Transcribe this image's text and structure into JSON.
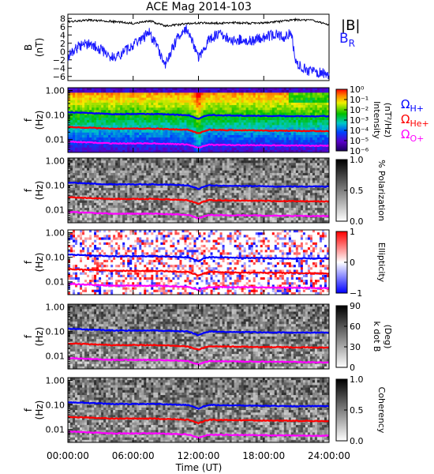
{
  "title": "ACE Mag 2014-103",
  "xlabel": "Time (UT)",
  "x_ticks": [
    "00:00:00",
    "06:00:00",
    "12:00:00",
    "18:00:00",
    "24:00:00"
  ],
  "colors": {
    "b_total": "#000000",
    "b_r": "#1a1aff",
    "h_plus": "#0000ff",
    "he_plus": "#ff0000",
    "o_plus": "#ff00ff"
  },
  "panel_b": {
    "ylabel": "B",
    "yunit": "(nT)",
    "ticks": [
      "8",
      "6",
      "4",
      "2",
      "0",
      "−2",
      "−4",
      "−6"
    ],
    "legend_b": "|B|",
    "legend_br": "B",
    "legend_br_sub": "R"
  },
  "spectral": {
    "ylabel": "f",
    "yunit": "(Hz)",
    "ticks": [
      "1.00",
      "0.10",
      "0.01"
    ]
  },
  "panels": [
    {
      "label": "Intensity",
      "unit": "(nT²/Hz)",
      "colormap": "rainbow",
      "ticks": [
        "10⁰",
        "10⁻¹",
        "10⁻²",
        "10⁻³",
        "10⁻⁴",
        "10⁻⁵",
        "10⁻⁶"
      ]
    },
    {
      "label": "% Polarization",
      "unit": "",
      "colormap": "gray",
      "ticks": [
        "1.0",
        "0.5",
        "0.0"
      ]
    },
    {
      "label": "Ellipticity",
      "unit": "",
      "colormap": "bwr",
      "ticks": [
        "1",
        "0",
        "−1"
      ]
    },
    {
      "label": "k dot B",
      "unit": "(Deg)",
      "colormap": "gray",
      "ticks": [
        "90",
        "60",
        "30",
        "0"
      ]
    },
    {
      "label": "Coherency",
      "unit": "",
      "colormap": "gray",
      "ticks": [
        "1.0",
        "0.5",
        "0.0"
      ]
    }
  ],
  "legend": {
    "h": "Ω",
    "h_sub": "H+",
    "he": "Ω",
    "he_sub": "He+",
    "o": "Ω",
    "o_sub": "O+"
  },
  "chart_data": {
    "type": "line",
    "title": "ACE Mag 2014-103",
    "xlabel": "Time (UT)",
    "x_range_hours": [
      0,
      24
    ],
    "b_ylim": [
      -7,
      9
    ],
    "f_ylim": [
      0.003,
      1.3
    ],
    "f_log_scale": true,
    "series": [
      {
        "name": "|B|",
        "x": [
          0,
          2,
          4,
          6,
          7.5,
          9,
          10.5,
          12,
          13.5,
          15,
          17,
          19,
          21,
          22.5,
          24
        ],
        "values": [
          7.2,
          7.6,
          7.3,
          6.8,
          7.4,
          6.2,
          6.6,
          6.9,
          6.8,
          7.0,
          6.8,
          7.1,
          7.7,
          7.5,
          6.5
        ]
      },
      {
        "name": "B",
        "x": [
          0,
          1,
          2,
          3,
          4,
          5,
          6,
          7,
          7.5,
          8,
          9,
          10,
          11,
          12,
          13,
          14,
          15,
          16,
          17,
          18,
          19,
          20,
          20.5,
          21,
          22,
          23,
          24
        ],
        "values": [
          -1.0,
          1.2,
          2.0,
          0.5,
          -1.5,
          -0.5,
          1.5,
          3.5,
          4.5,
          2.0,
          -3.0,
          3.0,
          5.5,
          -1.5,
          3.0,
          4.5,
          2.5,
          3.0,
          2.5,
          3.5,
          4.0,
          3.5,
          4.5,
          -3.0,
          -4.5,
          -5.0,
          -5.5
        ]
      },
      {
        "name": "Ω H+",
        "x": [
          0,
          4,
          8,
          11,
          12,
          12.5,
          13,
          16,
          20,
          24
        ],
        "values": [
          0.13,
          0.11,
          0.11,
          0.1,
          0.07,
          0.09,
          0.1,
          0.095,
          0.09,
          0.09
        ]
      },
      {
        "name": "Ω He+",
        "x": [
          0,
          4,
          8,
          11,
          12,
          12.5,
          13,
          16,
          20,
          24
        ],
        "values": [
          0.033,
          0.028,
          0.028,
          0.025,
          0.018,
          0.022,
          0.025,
          0.024,
          0.023,
          0.022
        ]
      },
      {
        "name": "Ω O+",
        "x": [
          0,
          4,
          8,
          11,
          12,
          12.5,
          13,
          16,
          20,
          24
        ],
        "values": [
          0.0083,
          0.007,
          0.007,
          0.0063,
          0.0045,
          0.0055,
          0.0062,
          0.006,
          0.0058,
          0.0056
        ]
      }
    ]
  }
}
